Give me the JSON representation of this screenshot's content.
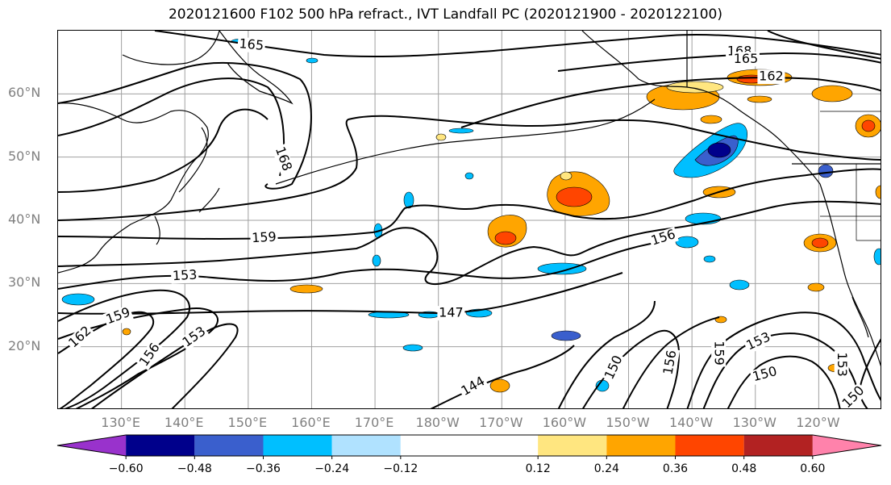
{
  "title": "2020121600 F102 500 hPa refract., IVT Landfall PC (2020121900 - 2020122100)",
  "lat_labels": [
    {
      "text": "60°N",
      "lat": 60
    },
    {
      "text": "50°N",
      "lat": 50
    },
    {
      "text": "40°N",
      "lat": 40
    },
    {
      "text": "30°N",
      "lat": 30
    },
    {
      "text": "20°N",
      "lat": 20
    }
  ],
  "lon_labels": [
    {
      "text": "130°E",
      "lon": 130
    },
    {
      "text": "140°E",
      "lon": 140
    },
    {
      "text": "150°E",
      "lon": 150
    },
    {
      "text": "160°E",
      "lon": 160
    },
    {
      "text": "170°E",
      "lon": 170
    },
    {
      "text": "180°W",
      "lon": 180
    },
    {
      "text": "170°W",
      "lon": 190
    },
    {
      "text": "160°W",
      "lon": 200
    },
    {
      "text": "150°W",
      "lon": 210
    },
    {
      "text": "140°W",
      "lon": 220
    },
    {
      "text": "130°W",
      "lon": 230
    },
    {
      "text": "120°W",
      "lon": 240
    }
  ],
  "map_extent": {
    "lon": [
      120,
      250
    ],
    "lat": [
      10,
      70
    ]
  },
  "contour_labels": [
    {
      "text": "165",
      "lon": 150.5,
      "lat": 67.7,
      "rot": 5
    },
    {
      "text": "168",
      "lon": 227.5,
      "lat": 66.7,
      "rot": 0
    },
    {
      "text": "165",
      "lon": 228.5,
      "lat": 65.5,
      "rot": 0
    },
    {
      "text": "162",
      "lon": 232.5,
      "lat": 62.7,
      "rot": 0
    },
    {
      "text": "168",
      "lon": 155.5,
      "lat": 49.7,
      "rot": 70
    },
    {
      "text": "159",
      "lon": 152.5,
      "lat": 37.2,
      "rot": -3
    },
    {
      "text": "156",
      "lon": 215.5,
      "lat": 37.2,
      "rot": -18
    },
    {
      "text": "153",
      "lon": 140,
      "lat": 31.2,
      "rot": -3
    },
    {
      "text": "147",
      "lon": 182,
      "lat": 25.3,
      "rot": 0
    },
    {
      "text": "159",
      "lon": 129.5,
      "lat": 24.8,
      "rot": -20
    },
    {
      "text": "162",
      "lon": 123.5,
      "lat": 21.5,
      "rot": -42
    },
    {
      "text": "153",
      "lon": 141.5,
      "lat": 21.5,
      "rot": -35
    },
    {
      "text": "156",
      "lon": 134.5,
      "lat": 18.7,
      "rot": -55
    },
    {
      "text": "150",
      "lon": 207.7,
      "lat": 16.7,
      "rot": -65
    },
    {
      "text": "156",
      "lon": 216.6,
      "lat": 17.5,
      "rot": -80
    },
    {
      "text": "159",
      "lon": 224.2,
      "lat": 19.0,
      "rot": 90
    },
    {
      "text": "153",
      "lon": 230.5,
      "lat": 20.8,
      "rot": -25
    },
    {
      "text": "150",
      "lon": 231.5,
      "lat": 15.6,
      "rot": -15
    },
    {
      "text": "144",
      "lon": 185.5,
      "lat": 13.7,
      "rot": -30
    },
    {
      "text": "153",
      "lon": 243.6,
      "lat": 17.2,
      "rot": 90
    },
    {
      "text": "150",
      "lon": 245.5,
      "lat": 12.0,
      "rot": -45
    }
  ],
  "colorbar": {
    "colors": [
      "#9932cc",
      "#00008b",
      "#3a5fcd",
      "#00bfff",
      "#b0e2ff",
      "#ffffff",
      "#ffe680",
      "#ffa500",
      "#ff4500",
      "#b22222",
      "#ff82ab"
    ],
    "ticks": [
      "−0.60",
      "−0.48",
      "−0.36",
      "−0.24",
      "−0.12",
      "0.12",
      "0.24",
      "0.36",
      "0.48",
      "0.60"
    ],
    "tick_values": [
      -0.6,
      -0.48,
      -0.36,
      -0.24,
      -0.12,
      0.12,
      0.24,
      0.36,
      0.48,
      0.6
    ],
    "range": [
      -0.72,
      0.72
    ]
  },
  "fill_colors": {
    "pos1": "#ffe680",
    "pos2": "#ffa500",
    "pos3": "#ff4500",
    "neg1": "#b0e2ff",
    "neg2": "#00bfff",
    "neg3": "#3a5fcd",
    "neg4": "#00008b"
  }
}
